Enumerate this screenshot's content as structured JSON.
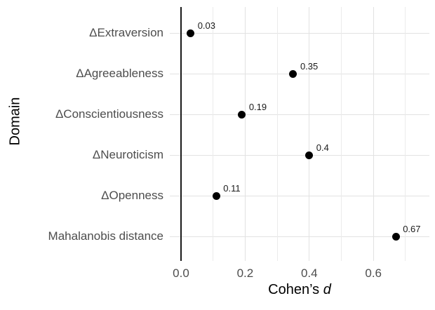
{
  "chart_data": {
    "type": "scatter",
    "variant": "dot-plot",
    "title": "",
    "ylabel": "Domain",
    "xlabel_text": "Cohen’s",
    "xlabel_italic": "d",
    "categories": [
      "ΔExtraversion",
      "ΔAgreeableness",
      "ΔConscientiousness",
      "ΔNeuroticism",
      "ΔOpenness",
      "Mahalanobis distance"
    ],
    "values": [
      0.03,
      0.35,
      0.19,
      0.4,
      0.11,
      0.67
    ],
    "value_labels": [
      "0.03",
      "0.35",
      "0.19",
      "0.4",
      "0.11",
      "0.67"
    ],
    "x_major_ticks": [
      0.0,
      0.2,
      0.4,
      0.6
    ],
    "x_tick_labels": [
      "0.0",
      "0.2",
      "0.4",
      "0.6"
    ],
    "x_minor_gridlines": [
      0.1,
      0.3,
      0.5,
      0.7
    ],
    "x_major_gridlines": [
      0.2,
      0.4,
      0.6
    ],
    "zero_line_x": 0.0,
    "xlim": [
      -0.035,
      0.775
    ],
    "grid": "on",
    "legend": "none",
    "colors": {
      "point": "#000000",
      "grid_major": "#e2e2e2",
      "grid_minor": "#ebebeb",
      "axis_text": "#4d4d4d",
      "title_text": "#000000",
      "zero_line": "#1a1a1a",
      "background": "#ffffff"
    }
  }
}
